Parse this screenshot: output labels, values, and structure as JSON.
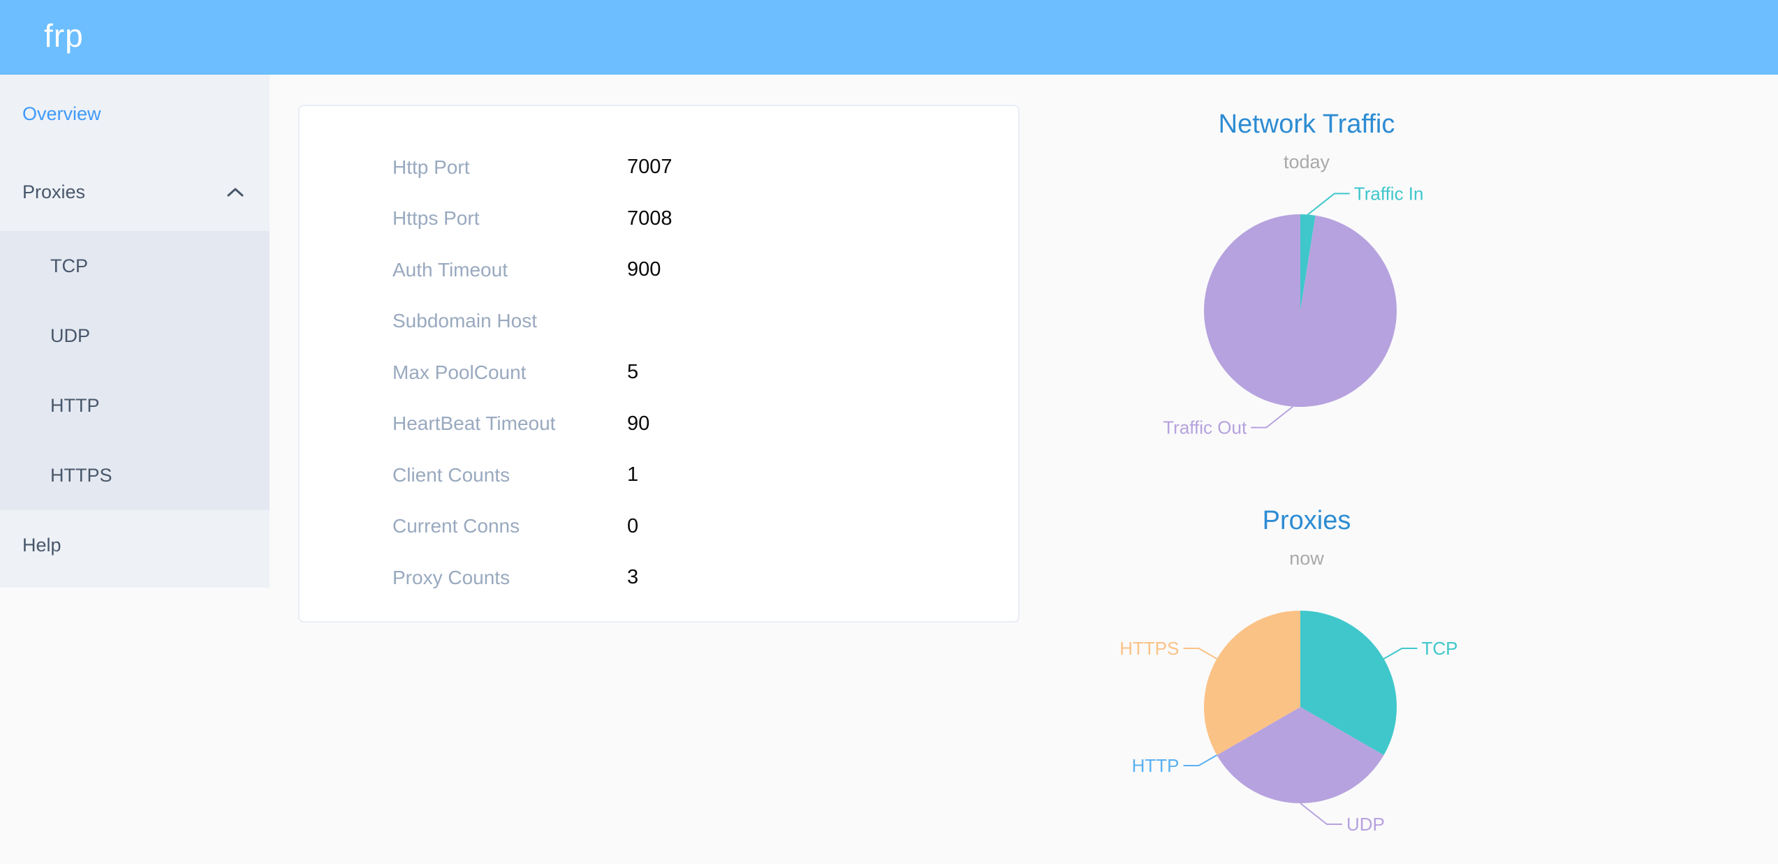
{
  "header": {
    "logo": "frp"
  },
  "sidebar": {
    "items": [
      {
        "label": "Overview",
        "active": true
      },
      {
        "label": "Proxies",
        "expanded": true,
        "children": [
          "TCP",
          "UDP",
          "HTTP",
          "HTTPS"
        ]
      },
      {
        "label": "Help"
      }
    ]
  },
  "overview": {
    "rows": [
      {
        "label": "Http Port",
        "value": "7007"
      },
      {
        "label": "Https Port",
        "value": "7008"
      },
      {
        "label": "Auth Timeout",
        "value": "900"
      },
      {
        "label": "Subdomain Host",
        "value": ""
      },
      {
        "label": "Max PoolCount",
        "value": "5"
      },
      {
        "label": "HeartBeat Timeout",
        "value": "90"
      },
      {
        "label": "Client Counts",
        "value": "1"
      },
      {
        "label": "Current Conns",
        "value": "0"
      },
      {
        "label": "Proxy Counts",
        "value": "3"
      }
    ]
  },
  "chart_data": [
    {
      "type": "pie",
      "title": "Network Traffic",
      "subtitle": "today",
      "legend_position": "outside-callout",
      "note": "values are percentages estimated from slice angles (no numbers shown on screen)",
      "series": [
        {
          "name": "Traffic In",
          "value": 2.5,
          "color": "#3FC7CB"
        },
        {
          "name": "Traffic Out",
          "value": 97.5,
          "color": "#B6A2DE"
        }
      ]
    },
    {
      "type": "pie",
      "title": "Proxies",
      "subtitle": "now",
      "legend_position": "outside-callout",
      "note": "proxy counts by type; HTTP slice is zero-sized but labelled",
      "series": [
        {
          "name": "TCP",
          "value": 1,
          "color": "#3FC7CB"
        },
        {
          "name": "UDP",
          "value": 1,
          "color": "#B6A2DE"
        },
        {
          "name": "HTTP",
          "value": 0,
          "color": "#5AB1EF"
        },
        {
          "name": "HTTPS",
          "value": 1,
          "color": "#FBC286"
        }
      ]
    }
  ],
  "colors": {
    "header_bg": "#6CBEFF",
    "sidebar_bg": "#EEF1F6",
    "submenu_bg": "#E4E8F1",
    "menu_text": "#48576A",
    "menu_active_text": "#3F9BFA",
    "chart_title_blue": "#2D8CD2",
    "card_label_gray": "#99A9BF"
  }
}
